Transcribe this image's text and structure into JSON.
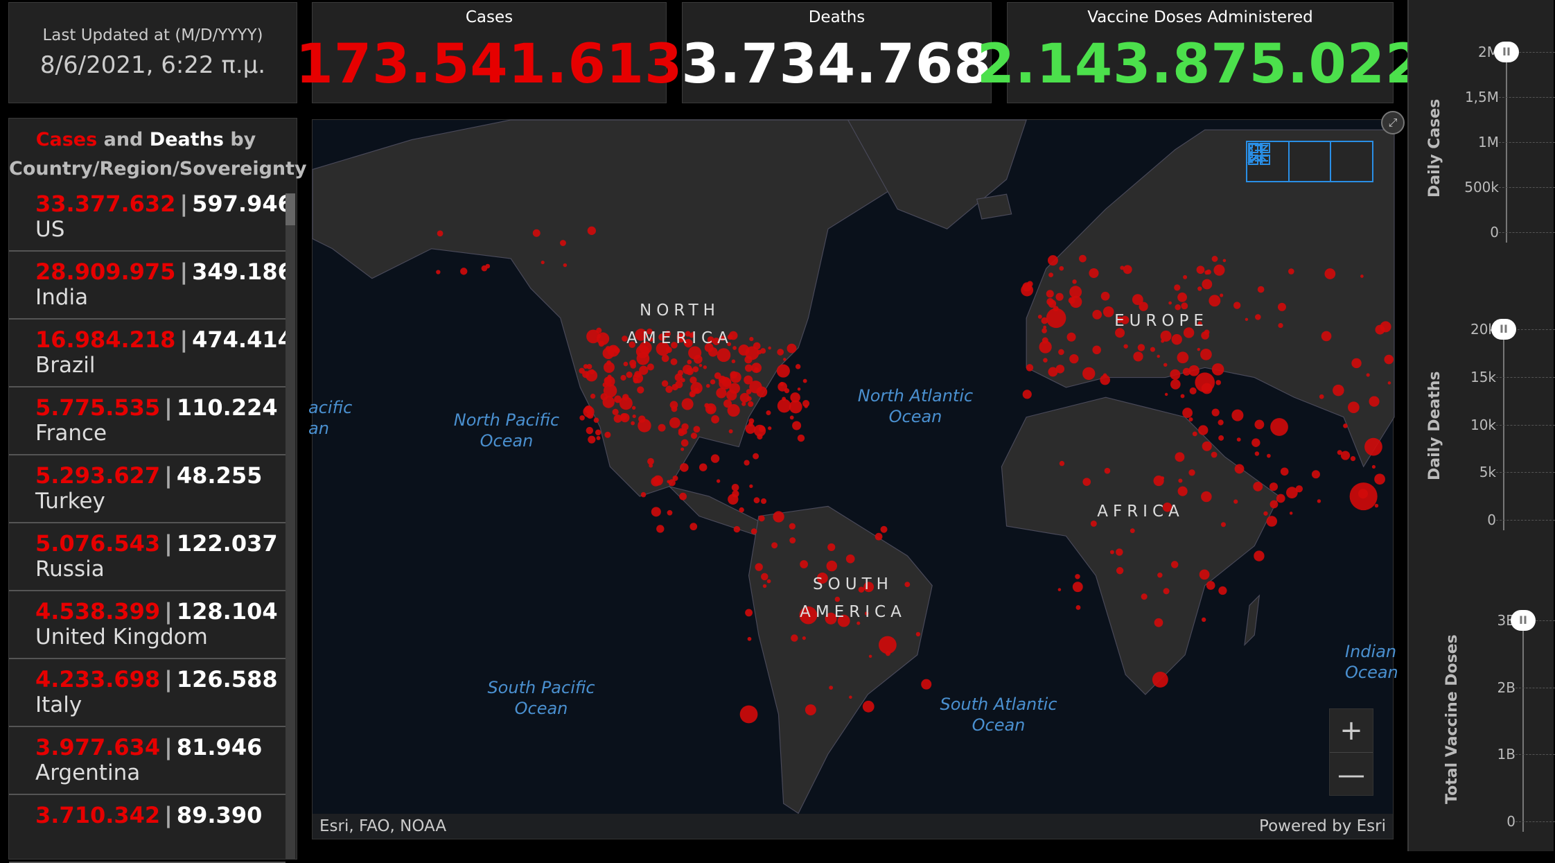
{
  "header": {
    "updated_label": "Last Updated at (M/D/YYYY)",
    "updated_value": "8/6/2021, 6:22 π.μ.",
    "cases_label": "Cases",
    "cases_value": "173.541.613",
    "deaths_label": "Deaths",
    "deaths_value": "3.734.768",
    "vaccine_label": "Vaccine Doses Administered",
    "vaccine_value": "2.143.875.022"
  },
  "list": {
    "title_cases": "Cases",
    "title_and": "and",
    "title_deaths": "Deaths",
    "title_by": "by",
    "title_line2": "Country/Region/Sovereignty",
    "rows": [
      {
        "cases": "33.377.632",
        "deaths": "597.946",
        "name": "US"
      },
      {
        "cases": "28.909.975",
        "deaths": "349.186",
        "name": "India"
      },
      {
        "cases": "16.984.218",
        "deaths": "474.414",
        "name": "Brazil"
      },
      {
        "cases": "5.775.535",
        "deaths": "110.224",
        "name": "France"
      },
      {
        "cases": "5.293.627",
        "deaths": "48.255",
        "name": "Turkey"
      },
      {
        "cases": "5.076.543",
        "deaths": "122.037",
        "name": "Russia"
      },
      {
        "cases": "4.538.399",
        "deaths": "128.104",
        "name": "United Kingdom"
      },
      {
        "cases": "4.233.698",
        "deaths": "126.588",
        "name": "Italy"
      },
      {
        "cases": "3.977.634",
        "deaths": "81.946",
        "name": "Argentina"
      },
      {
        "cases": "3.710.342",
        "deaths": "89.390",
        "name": ""
      }
    ]
  },
  "map": {
    "labels": {
      "north_america": "NORTH AMERICA",
      "south_america": "SOUTH AMERICA",
      "europe": "EUROPE",
      "africa": "AFRICA",
      "north_pacific": "North Pacific Ocean",
      "north_atlantic": "North Atlantic Ocean",
      "south_pacific": "South Pacific Ocean",
      "south_atlantic": "South Atlantic Ocean",
      "indian": "Indian Ocean",
      "pacific_left": "acific an"
    },
    "attribution": "Esri, FAO, NOAA",
    "powered_by": "Powered by Esri",
    "zoom_in": "+",
    "zoom_out": "—",
    "colors": {
      "ocean": "#0a111b",
      "land": "#2c2c2c",
      "dots": "#d10a0a",
      "widget": "#2a8fe6"
    },
    "icons": [
      "bookmark-icon",
      "legend-icon",
      "basemap-gallery-icon",
      "fullscreen-icon"
    ]
  },
  "charts": [
    {
      "ylabel": "Daily Cases",
      "ticks": [
        "2M",
        "1,5M",
        "1M",
        "500k",
        "0"
      ]
    },
    {
      "ylabel": "Daily Deaths",
      "ticks": [
        "20k",
        "15k",
        "10k",
        "5k",
        "0"
      ]
    },
    {
      "ylabel": "Total Vaccine Doses",
      "ticks": [
        "3B",
        "2B",
        "1B",
        "0"
      ]
    }
  ],
  "colors": {
    "cases": "#e60000",
    "deaths": "#ffffff",
    "vaccine": "#4ce04c",
    "panel": "#222222"
  }
}
